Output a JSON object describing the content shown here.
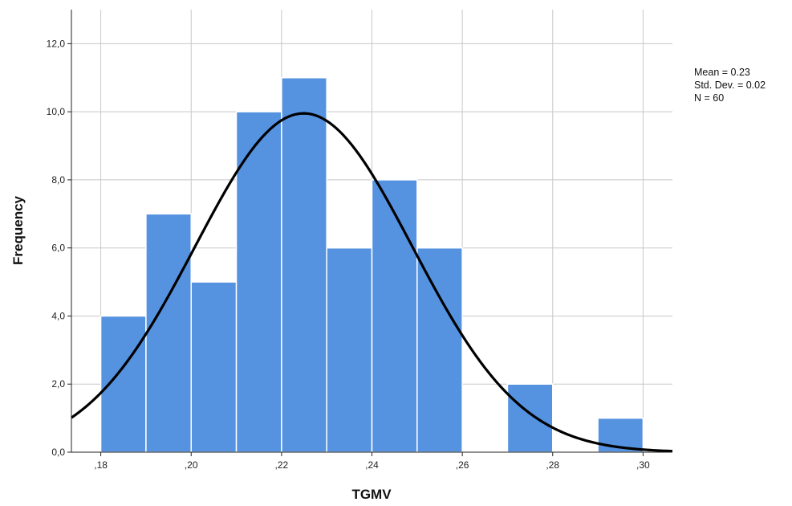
{
  "chart_data": {
    "type": "bar",
    "subtype": "histogram",
    "xlabel": "TGMV",
    "ylabel": "Frequency",
    "bins": [
      {
        "start": 0.18,
        "end": 0.19,
        "value": 4
      },
      {
        "start": 0.19,
        "end": 0.2,
        "value": 7
      },
      {
        "start": 0.2,
        "end": 0.21,
        "value": 5
      },
      {
        "start": 0.21,
        "end": 0.22,
        "value": 10
      },
      {
        "start": 0.22,
        "end": 0.23,
        "value": 11
      },
      {
        "start": 0.23,
        "end": 0.24,
        "value": 6
      },
      {
        "start": 0.24,
        "end": 0.25,
        "value": 8
      },
      {
        "start": 0.25,
        "end": 0.26,
        "value": 6
      },
      {
        "start": 0.27,
        "end": 0.28,
        "value": 2
      },
      {
        "start": 0.29,
        "end": 0.3,
        "value": 1
      }
    ],
    "xlim": [
      0.1735,
      0.3065
    ],
    "ylim": [
      0,
      13
    ],
    "x_ticks": [
      {
        "value": 0.18,
        "label": ",18"
      },
      {
        "value": 0.2,
        "label": ",20"
      },
      {
        "value": 0.22,
        "label": ",22"
      },
      {
        "value": 0.24,
        "label": ",24"
      },
      {
        "value": 0.26,
        "label": ",26"
      },
      {
        "value": 0.28,
        "label": ",28"
      },
      {
        "value": 0.3,
        "label": ",30"
      }
    ],
    "y_ticks": [
      {
        "value": 0,
        "label": "0,0"
      },
      {
        "value": 2,
        "label": "2,0"
      },
      {
        "value": 4,
        "label": "4,0"
      },
      {
        "value": 6,
        "label": "6,0"
      },
      {
        "value": 8,
        "label": "8,0"
      },
      {
        "value": 10,
        "label": "10,0"
      },
      {
        "value": 12,
        "label": "12,0"
      }
    ],
    "normal_curve": {
      "mean": 0.2249,
      "std_dev": 0.02405,
      "n": 60,
      "bin_width": 0.01
    },
    "grid": true,
    "bar_color": "#5592e0",
    "curve_color": "#000000"
  },
  "stats": {
    "mean": "Mean = 0.23",
    "std_dev": "Std. Dev. = 0.02",
    "n": "N = 60"
  }
}
